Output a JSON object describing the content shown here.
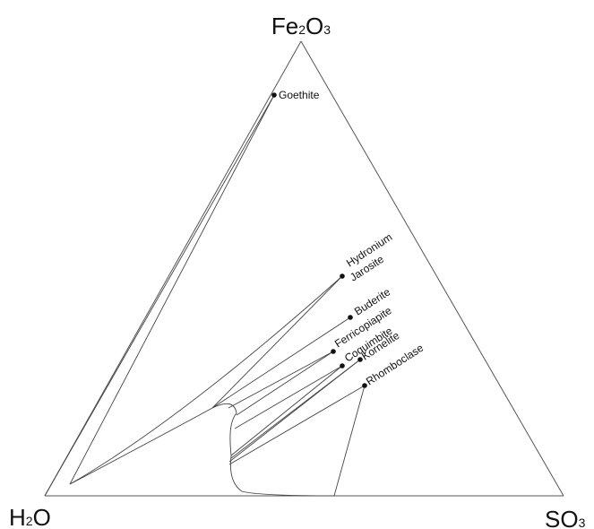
{
  "diagram": {
    "apices": {
      "top": {
        "main": "Fe",
        "sub1": "2",
        "mid": "O",
        "sub2": "3"
      },
      "left": {
        "main": "H",
        "sub1": "2",
        "mid": "O",
        "sub2": ""
      },
      "right": {
        "main": "SO",
        "sub1": "3",
        "mid": "",
        "sub2": ""
      }
    },
    "phases": [
      {
        "name": "Goethite"
      },
      {
        "name": "Hydronium"
      },
      {
        "name": "Jarosite"
      },
      {
        "name": "Buderite"
      },
      {
        "name": "Ferricopiapite"
      },
      {
        "name": "Coquimbite"
      },
      {
        "name": "Kornelite"
      },
      {
        "name": "Rhomboclase"
      }
    ]
  }
}
